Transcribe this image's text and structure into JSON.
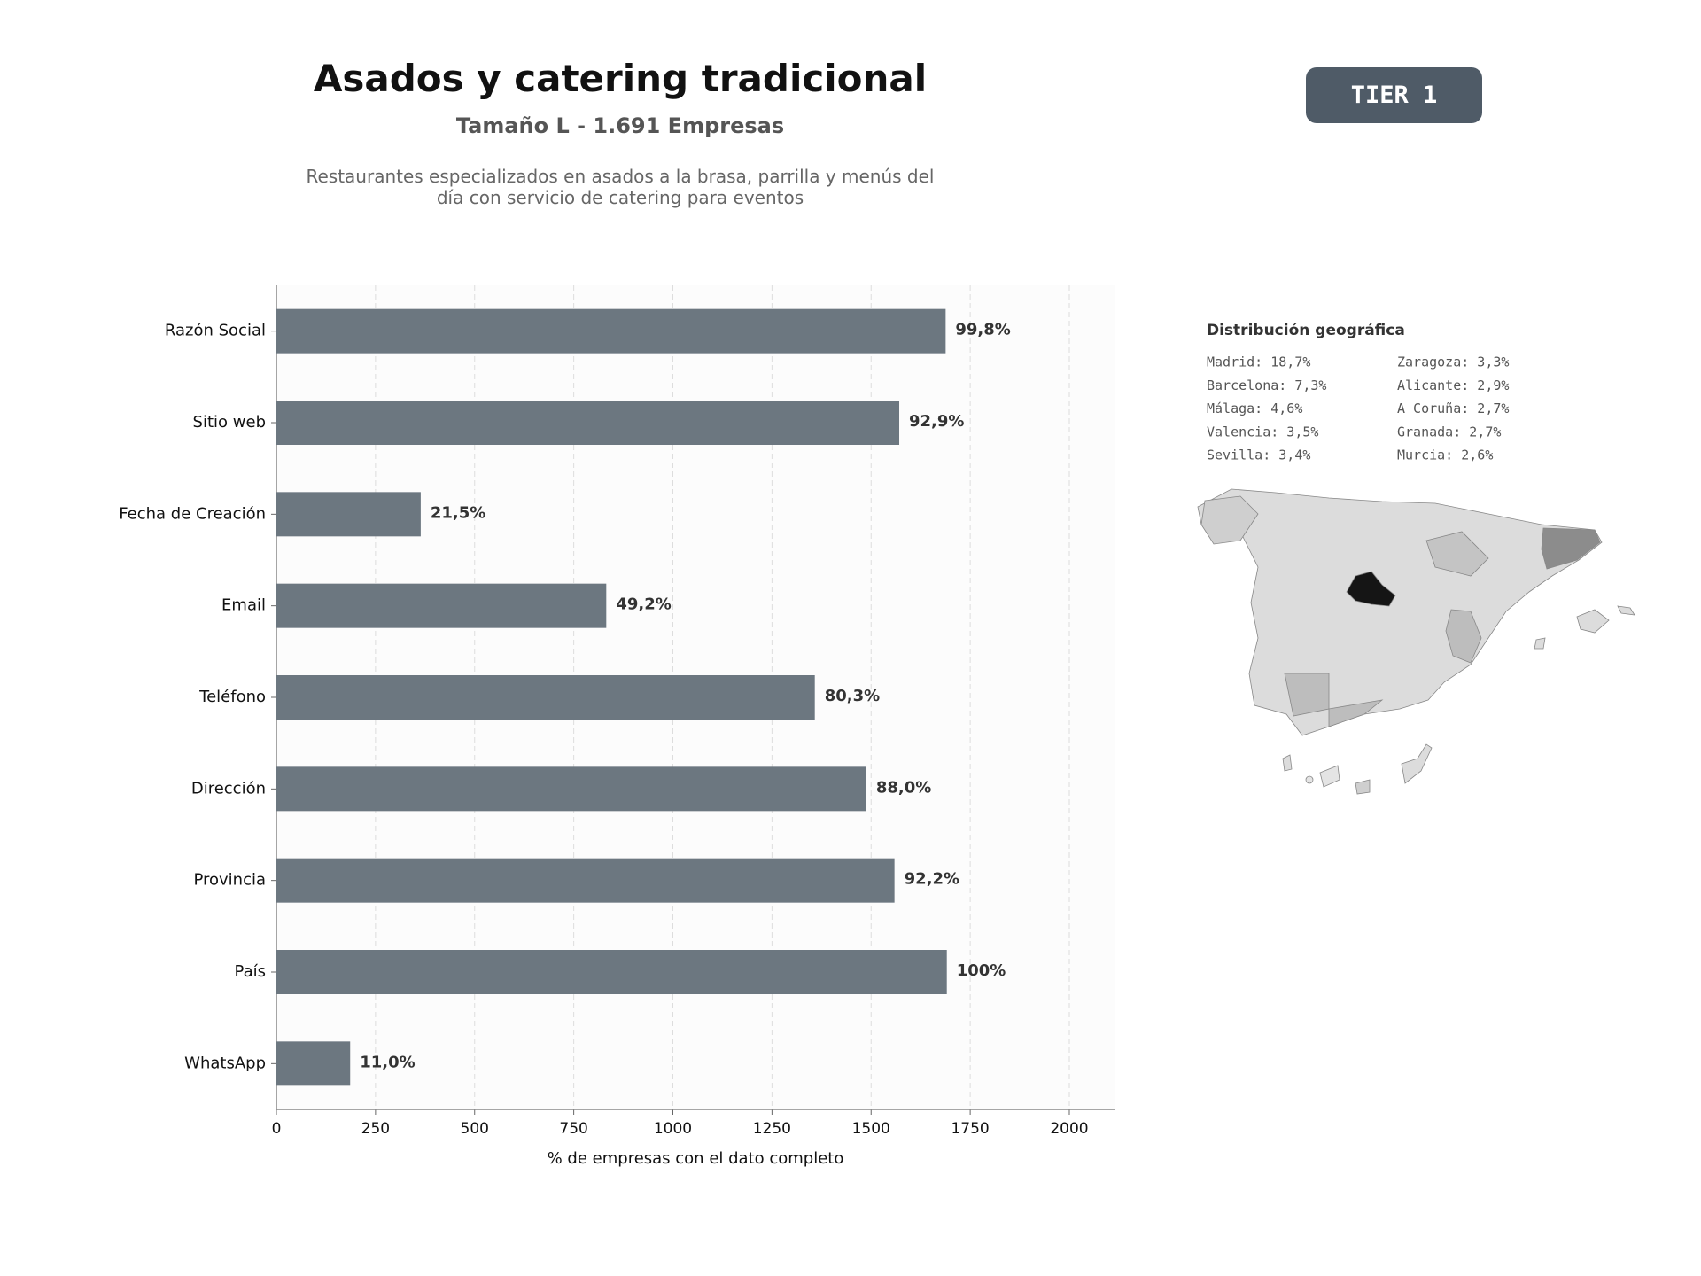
{
  "header": {
    "title": "Asados y catering tradicional",
    "subtitle": "Tamaño L - 1.691 Empresas",
    "description": "Restaurantes especializados en asados a la brasa, parrilla y menús del día con servicio de catering para eventos",
    "tier": "TIER 1"
  },
  "chart_data": {
    "type": "bar",
    "orientation": "horizontal",
    "categories": [
      "Razón Social",
      "Sitio web",
      "Fecha de Creación",
      "Email",
      "Teléfono",
      "Dirección",
      "Provincia",
      "País",
      "WhatsApp"
    ],
    "values": [
      1688,
      1571,
      364,
      832,
      1358,
      1488,
      1559,
      1691,
      186
    ],
    "value_labels": [
      "99,8%",
      "92,9%",
      "21,5%",
      "49,2%",
      "80,3%",
      "88,0%",
      "92,2%",
      "100%",
      "11,0%"
    ],
    "color": "#6c7780",
    "xlabel": "% de empresas con el dato completo",
    "xlim": [
      0,
      2114
    ],
    "xticks": [
      0,
      250,
      500,
      750,
      1000,
      1250,
      1500,
      1750,
      2000
    ],
    "grid": true
  },
  "geo": {
    "title": "Distribución geográfica",
    "items": [
      "Madrid: 18,7%",
      "Barcelona: 7,3%",
      "Málaga: 4,6%",
      "Valencia: 3,5%",
      "Sevilla: 3,4%",
      "Zaragoza: 3,3%",
      "Alicante: 2,9%",
      "A Coruña: 2,7%",
      "Granada: 2,7%",
      "Murcia: 2,6%"
    ]
  }
}
